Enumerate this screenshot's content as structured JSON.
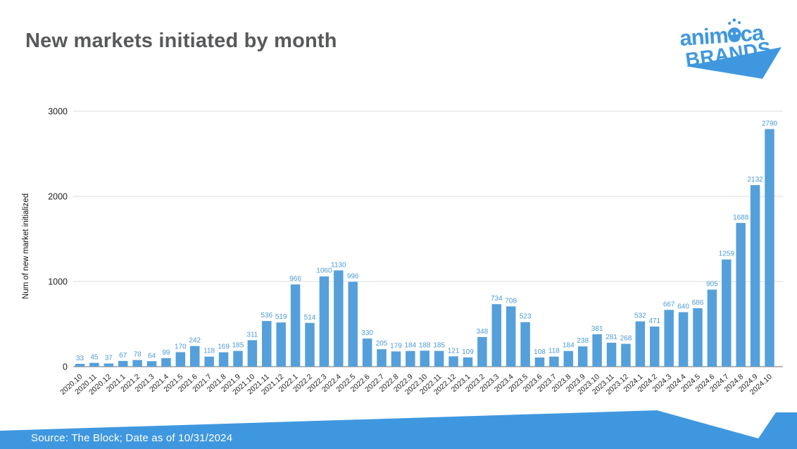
{
  "page": {
    "title": "New markets initiated by month",
    "source_note": "Source: The Block; Date as of 10/31/2024"
  },
  "logo": {
    "line1": "animoca",
    "line2": "BRANDS"
  },
  "colors": {
    "brand_blue": "#3F98DF",
    "bar_blue": "#55A0DB",
    "value_label_blue": "#4C9BD6",
    "title_gray": "#58595B",
    "gridline": "#DCDCDC",
    "axis_line": "#9E9E9E",
    "tick_text": "#1F1F1F",
    "footer_blue": "#3F98DF",
    "white": "#FFFFFF"
  },
  "chart_data": {
    "type": "bar",
    "title": "New markets initiated by month",
    "xlabel": "",
    "ylabel": "Num of new market initialized",
    "ylim": [
      0,
      3000
    ],
    "yticks": [
      0,
      1000,
      2000,
      3000
    ],
    "grid": true,
    "legend": "none",
    "bar_labels_shown": true,
    "categories": [
      "2020.10",
      "2020.11",
      "2020.12",
      "2021.1",
      "2021.2",
      "2021.3",
      "2021.4",
      "2021.5",
      "2021.6",
      "2021.7",
      "2021.8",
      "2021.9",
      "2021.10",
      "2021.11",
      "2021.12",
      "2022.1",
      "2022.2",
      "2022.3",
      "2022.4",
      "2022.5",
      "2022.6",
      "2022.7",
      "2022.8",
      "2022.9",
      "2022.10",
      "2022.11",
      "2022.12",
      "2023.1",
      "2023.2",
      "2023.3",
      "2023.4",
      "2023.5",
      "2023.6",
      "2023.7",
      "2023.8",
      "2023.9",
      "2023.10",
      "2023.11",
      "2023.12",
      "2024.1",
      "2024.2",
      "2024.3",
      "2024.4",
      "2024.5",
      "2024.6",
      "2024.7",
      "2024.8",
      "2024.9",
      "2024.10"
    ],
    "values": [
      33,
      45,
      37,
      67,
      78,
      64,
      99,
      170,
      242,
      118,
      169,
      185,
      311,
      536,
      519,
      966,
      514,
      1060,
      1130,
      996,
      330,
      205,
      179,
      184,
      188,
      185,
      121,
      109,
      348,
      734,
      708,
      523,
      108,
      118,
      184,
      238,
      381,
      281,
      268,
      532,
      471,
      667,
      640,
      686,
      905,
      1259,
      1688,
      2132,
      2790
    ]
  }
}
